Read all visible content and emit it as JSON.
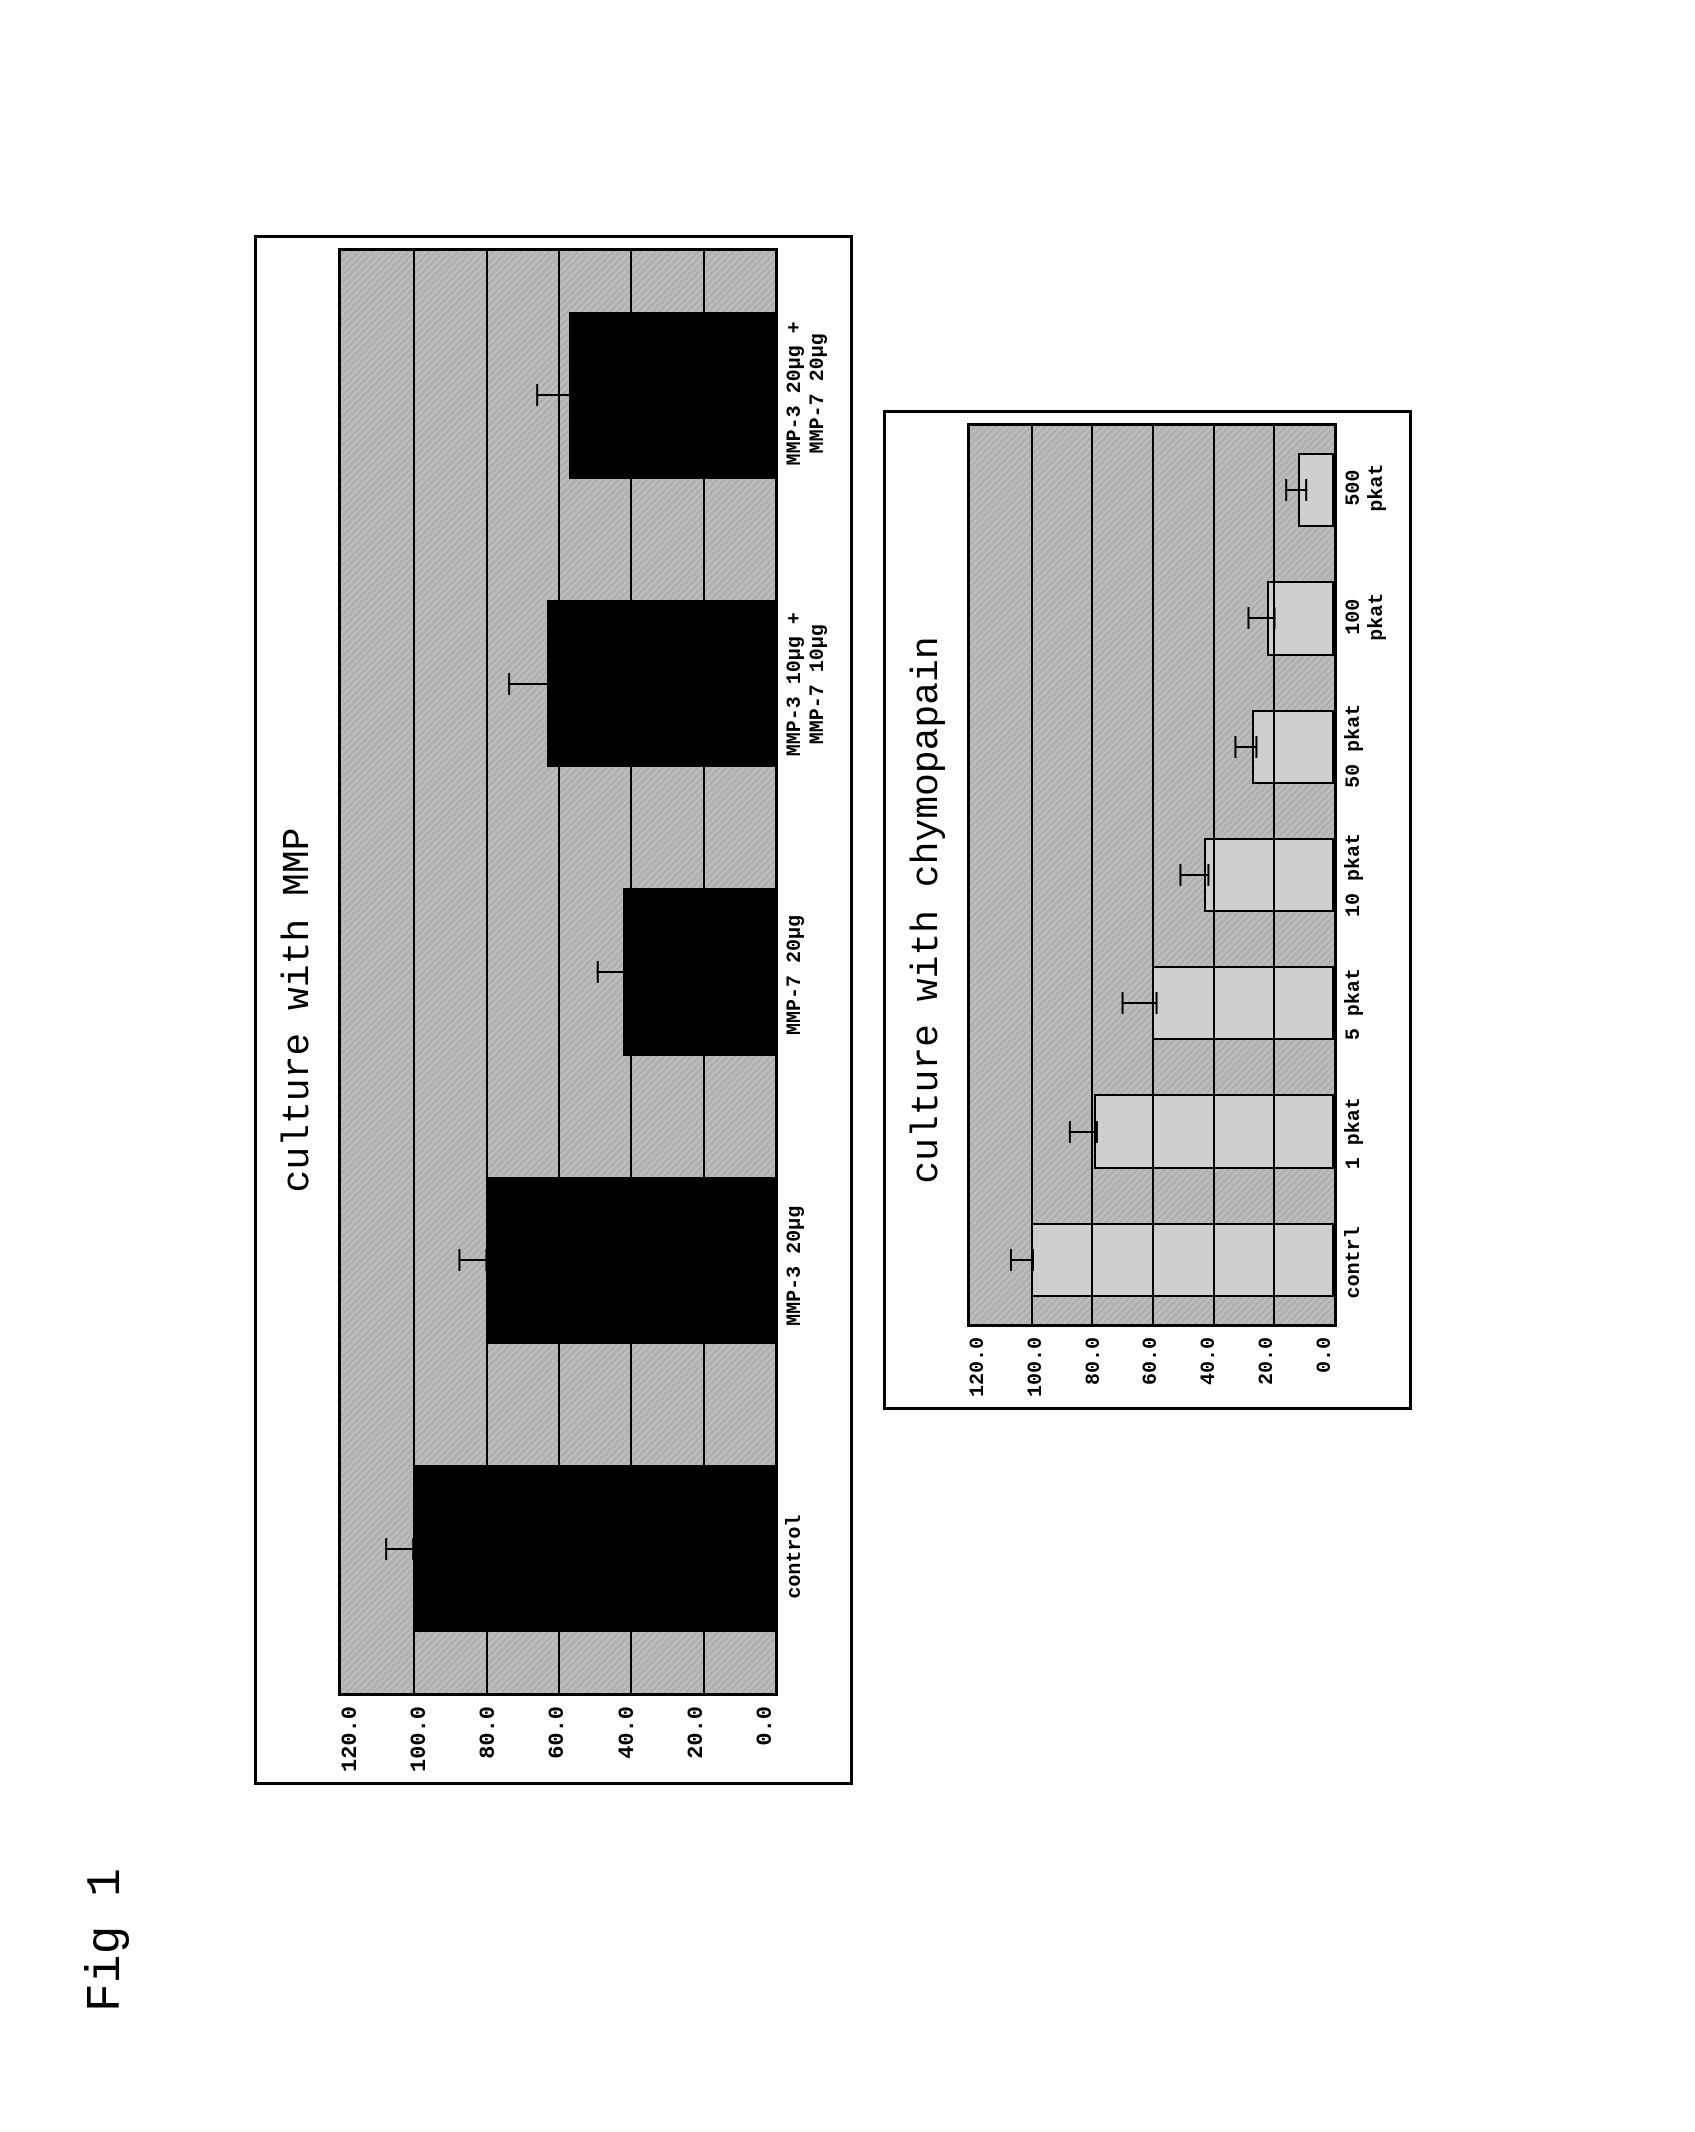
{
  "figure_label": "Fig 1",
  "background_color": "#ffffff",
  "chart_a": {
    "type": "bar",
    "title": "culture with MMP",
    "title_fontsize": 38,
    "ylim": [
      0.0,
      120.0
    ],
    "ytick_step": 20.0,
    "yticks": [
      "120.0",
      "100.0",
      "80.0",
      "60.0",
      "40.0",
      "20.0",
      "0.0"
    ],
    "plot_background": "#b0b0b0",
    "grid_color": "#000000",
    "bar_color": "#000000",
    "bar_width": 0.58,
    "error_color": "#000000",
    "label_fontsize": 22,
    "categories": [
      "control",
      "MMP-3 20μg",
      "MMP-7 20μg",
      "MMP-3 10μg +\nMMP-7 10μg",
      "MMP-3 20μg +\nMMP-7 20μg"
    ],
    "values": [
      100.0,
      80.0,
      42.0,
      63.0,
      57.0
    ],
    "errors": [
      4.0,
      4.0,
      4.0,
      6.0,
      5.0
    ]
  },
  "chart_b": {
    "type": "bar",
    "title": "culture with chymopapain",
    "title_fontsize": 38,
    "ylim": [
      0.0,
      120.0
    ],
    "ytick_step": 20.0,
    "yticks": [
      "120.0",
      "100.0",
      "80.0",
      "60.0",
      "40.0",
      "20.0",
      "0.0"
    ],
    "plot_background": "#b0b0b0",
    "grid_color": "#000000",
    "bar_color": "#cfcfcf",
    "bar_border": "#000000",
    "bar_width": 0.58,
    "error_color": "#000000",
    "label_fontsize": 20,
    "categories": [
      "contrl",
      "1 pkat",
      "5 pkat",
      "10 pkat",
      "50 pkat",
      "100\npkat",
      "500\npkat"
    ],
    "values": [
      100.0,
      79.0,
      60.0,
      43.0,
      27.0,
      22.0,
      12.0
    ],
    "errors": [
      4.0,
      5.0,
      6.0,
      5.0,
      4.0,
      5.0,
      4.0
    ]
  }
}
